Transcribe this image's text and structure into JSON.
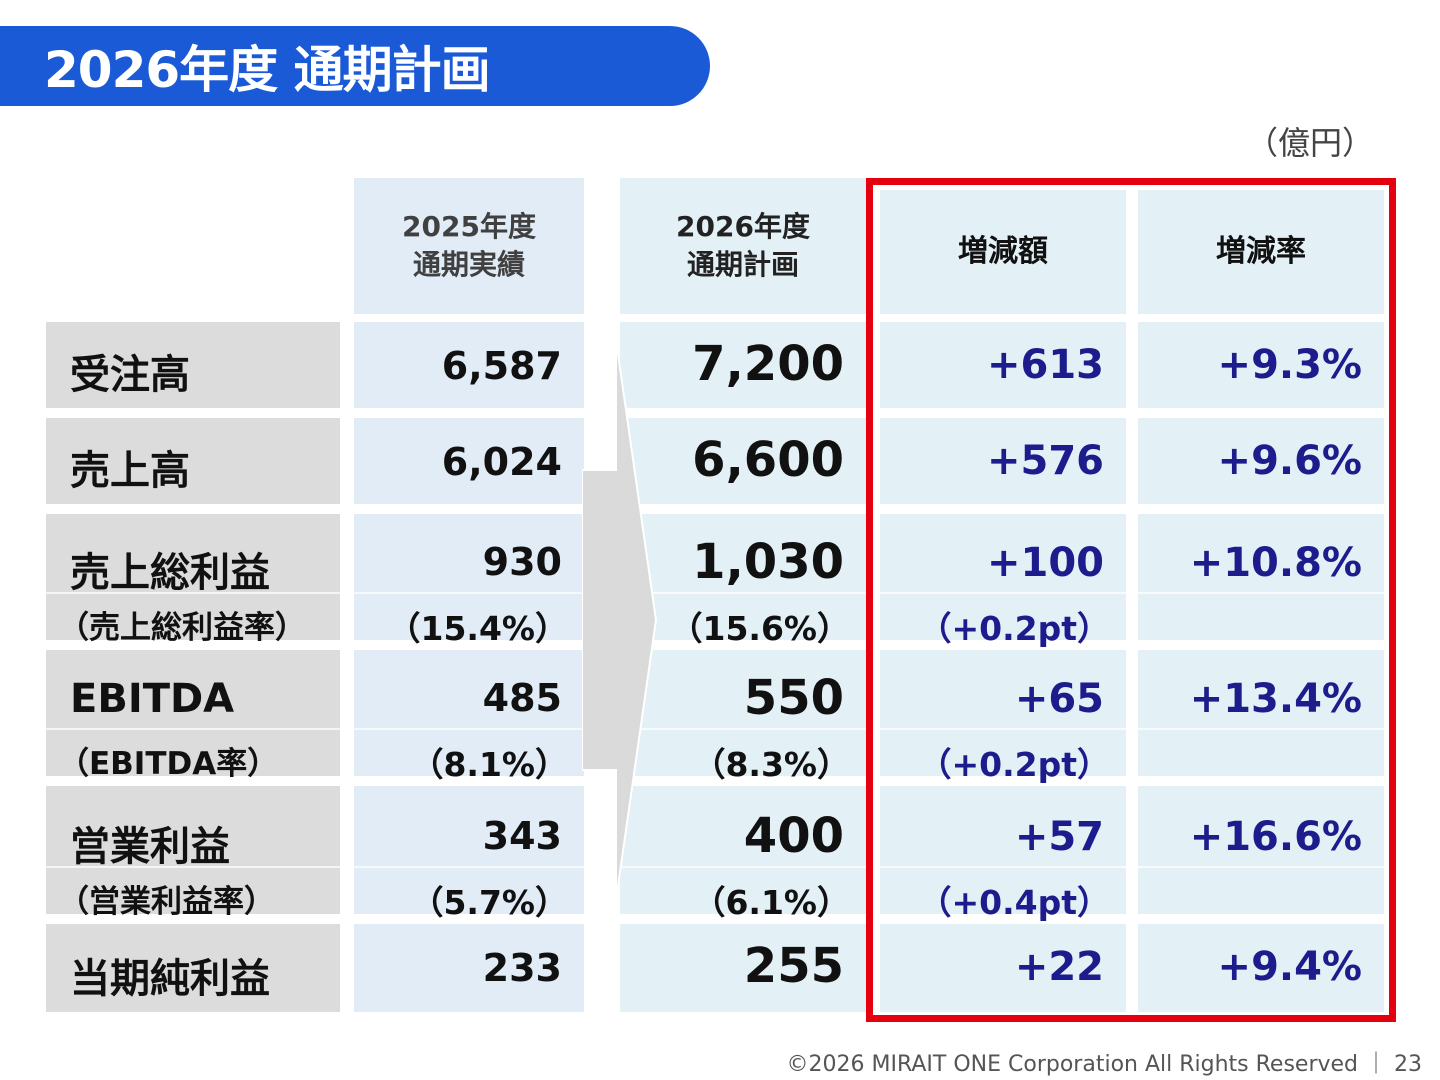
{
  "title": "2026年度 通期計画",
  "unit": "（億円）",
  "headers": {
    "col25": [
      "2025年度",
      "通期実績"
    ],
    "col26": [
      "2026年度",
      "通期計画"
    ],
    "change": "増減額",
    "rate": "増減率"
  },
  "rows": [
    {
      "label": "受注高",
      "v25": "6,587",
      "v26": "7,200",
      "change": "+613",
      "rate": "+9.3%"
    },
    {
      "label": "売上高",
      "v25": "6,024",
      "v26": "6,600",
      "change": "+576",
      "rate": "+9.6%"
    },
    {
      "label": "売上総利益",
      "sublabel": "（売上総利益率）",
      "v25": "930",
      "v25_sub": "（15.4%）",
      "v26": "1,030",
      "v26_sub": "（15.6%）",
      "change": "+100",
      "change_sub": "（+0.2pt）",
      "rate": "+10.8%"
    },
    {
      "label": "EBITDA",
      "sublabel": "（EBITDA率）",
      "v25": "485",
      "v25_sub": "（8.1%）",
      "v26": "550",
      "v26_sub": "（8.3%）",
      "change": "+65",
      "change_sub": "（+0.2pt）",
      "rate": "+13.4%"
    },
    {
      "label": "営業利益",
      "sublabel": "（営業利益率）",
      "v25": "343",
      "v25_sub": "（5.7%）",
      "v26": "400",
      "v26_sub": "（6.1%）",
      "change": "+57",
      "change_sub": "（+0.4pt）",
      "rate": "+16.6%"
    },
    {
      "label": "当期純利益",
      "v25": "233",
      "v26": "255",
      "change": "+22",
      "rate": "+9.4%"
    }
  ],
  "footer": "©2026 MIRAIT ONE Corporation All Rights Reserved ｜ 23",
  "colors": {
    "accent": "#1a5ad6",
    "highlight_frame": "#e4000f",
    "change_text": "#1c1c8c"
  }
}
